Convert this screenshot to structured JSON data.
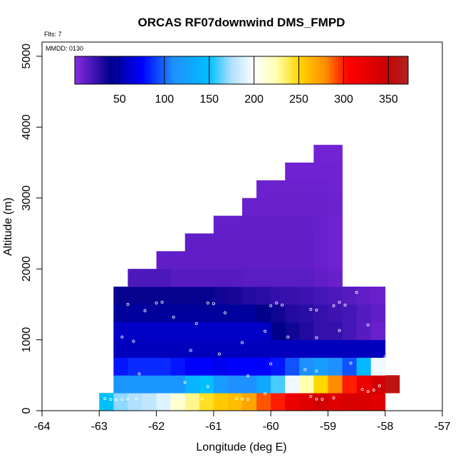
{
  "chart_data": {
    "type": "heatmap",
    "title": "ORCAS RF07downwind DMS_FMPD",
    "note_flights": "Flts: 7",
    "note_date": "MMDD: 0130",
    "xlabel": "Longitude (deg E)",
    "ylabel": "Altitude (m)",
    "xlim": [
      -64,
      -57
    ],
    "ylim": [
      0,
      5200
    ],
    "xticks": [
      -64,
      -63,
      -62,
      -61,
      -60,
      -59,
      -58,
      -57
    ],
    "xtick_labels": [
      "-64",
      "-63",
      "-62",
      "-61",
      "-60",
      "-59",
      "-58",
      "-57"
    ],
    "yticks": [
      0,
      1000,
      2000,
      3000,
      4000,
      5000
    ],
    "ytick_labels": [
      "0",
      "1000",
      "2000",
      "3000",
      "4000",
      "5000"
    ],
    "colorbar": {
      "min": 0,
      "max": 372,
      "ticks": [
        50,
        100,
        150,
        200,
        250,
        300,
        350
      ],
      "tick_labels": [
        "50",
        "100",
        "150",
        "200",
        "250",
        "300",
        "350"
      ],
      "colors": [
        [
          0,
          "#8a2be2"
        ],
        [
          40,
          "#00008b"
        ],
        [
          75,
          "#0000ff"
        ],
        [
          110,
          "#1e90ff"
        ],
        [
          150,
          "#00bfff"
        ],
        [
          175,
          "#b0e0ff"
        ],
        [
          200,
          "#ffffff"
        ],
        [
          225,
          "#ffffb0"
        ],
        [
          250,
          "#ffd700"
        ],
        [
          280,
          "#ff8c00"
        ],
        [
          305,
          "#ff0000"
        ],
        [
          345,
          "#cc0000"
        ],
        [
          372,
          "#b22222"
        ]
      ]
    },
    "cell_width_deg": 0.25,
    "cell_height_m": 250,
    "rows": [
      {
        "alt_bottom": 0,
        "lon_start": -63.0,
        "values": [
          150,
          170,
          175,
          180,
          190,
          215,
          230,
          245,
          255,
          260,
          270,
          290,
          300,
          320,
          330,
          340,
          330,
          335,
          335,
          330
        ]
      },
      {
        "alt_bottom": 250,
        "lon_start": -62.75,
        "values": [
          115,
          115,
          115,
          115,
          115,
          140,
          150,
          120,
          110,
          110,
          130,
          160,
          195,
          225,
          250,
          280,
          300,
          320,
          340,
          360
        ]
      },
      {
        "alt_bottom": 500,
        "lon_start": -62.75,
        "values": [
          80,
          85,
          85,
          85,
          80,
          75,
          75,
          70,
          75,
          75,
          75,
          80,
          95,
          110,
          120,
          110,
          95,
          145,
          195
        ]
      },
      {
        "alt_bottom": 750,
        "lon_start": -62.75,
        "values": [
          55,
          55,
          55,
          55,
          55,
          55,
          55,
          55,
          55,
          55,
          55,
          55,
          55,
          55,
          55,
          55,
          55,
          55,
          55
        ]
      },
      {
        "alt_bottom": 1000,
        "lon_start": -62.75,
        "values": [
          58,
          58,
          58,
          58,
          58,
          58,
          58,
          58,
          58,
          58,
          58,
          40,
          35,
          30,
          25,
          25,
          20,
          15,
          10
        ]
      },
      {
        "alt_bottom": 1250,
        "lon_start": -62.75,
        "values": [
          45,
          45,
          45,
          45,
          45,
          45,
          45,
          45,
          45,
          45,
          40,
          35,
          30,
          28,
          25,
          22,
          20,
          16,
          12
        ]
      },
      {
        "alt_bottom": 1500,
        "lon_start": -62.75,
        "values": [
          38,
          38,
          38,
          38,
          38,
          38,
          38,
          35,
          33,
          30,
          28,
          25,
          24,
          22,
          20,
          18,
          15,
          12,
          10
        ]
      },
      {
        "alt_bottom": 1750,
        "lon_start": -62.5,
        "values": [
          18,
          18,
          18,
          15,
          15,
          15,
          15,
          15,
          14,
          14,
          14,
          14,
          14,
          12,
          10
        ]
      },
      {
        "alt_bottom": 2000,
        "lon_start": -62.0,
        "values": [
          12,
          12,
          12,
          12,
          12,
          12,
          12,
          12,
          12,
          12,
          12,
          10,
          8
        ]
      },
      {
        "alt_bottom": 2250,
        "lon_start": -61.5,
        "values": [
          12,
          12,
          12,
          12,
          12,
          12,
          12,
          12,
          12,
          10,
          8
        ]
      },
      {
        "alt_bottom": 2500,
        "lon_start": -61.0,
        "values": [
          11,
          11,
          11,
          11,
          11,
          11,
          11,
          10,
          8
        ]
      },
      {
        "alt_bottom": 2750,
        "lon_start": -60.5,
        "values": [
          10,
          10,
          10,
          10,
          10,
          10,
          9
        ]
      },
      {
        "alt_bottom": 3000,
        "lon_start": -60.25,
        "values": [
          9,
          9,
          9,
          9,
          9,
          8
        ]
      },
      {
        "alt_bottom": 3250,
        "lon_start": -59.75,
        "values": [
          8,
          8,
          8,
          8
        ]
      },
      {
        "alt_bottom": 3500,
        "lon_start": -59.25,
        "values": [
          7,
          7
        ]
      }
    ],
    "sample_points": [
      [
        -62.9,
        170
      ],
      [
        -62.8,
        160
      ],
      [
        -62.7,
        155
      ],
      [
        -62.6,
        160
      ],
      [
        -62.5,
        165
      ],
      [
        -62.35,
        170
      ],
      [
        -61.6,
        170
      ],
      [
        -61.5,
        165
      ],
      [
        -61.2,
        165
      ],
      [
        -60.6,
        170
      ],
      [
        -60.5,
        165
      ],
      [
        -60.4,
        160
      ],
      [
        -60.1,
        240
      ],
      [
        -59.3,
        200
      ],
      [
        -59.2,
        165
      ],
      [
        -59.1,
        160
      ],
      [
        -58.9,
        180
      ],
      [
        -58.4,
        300
      ],
      [
        -58.3,
        270
      ],
      [
        -58.2,
        290
      ],
      [
        -58.1,
        350
      ],
      [
        -62.8,
        580
      ],
      [
        -62.3,
        520
      ],
      [
        -61.5,
        400
      ],
      [
        -61.1,
        340
      ],
      [
        -60.4,
        490
      ],
      [
        -60.0,
        660
      ],
      [
        -59.4,
        580
      ],
      [
        -59.2,
        560
      ],
      [
        -58.6,
        670
      ],
      [
        -58.0,
        760
      ],
      [
        -62.4,
        980
      ],
      [
        -62.6,
        1040
      ],
      [
        -61.4,
        850
      ],
      [
        -60.9,
        800
      ],
      [
        -60.5,
        960
      ],
      [
        -60.1,
        1120
      ],
      [
        -59.7,
        1040
      ],
      [
        -59.2,
        1030
      ],
      [
        -58.8,
        1130
      ],
      [
        -58.3,
        1210
      ],
      [
        -62.5,
        1500
      ],
      [
        -62.2,
        1410
      ],
      [
        -62.0,
        1520
      ],
      [
        -61.9,
        1530
      ],
      [
        -61.7,
        1320
      ],
      [
        -61.3,
        1230
      ],
      [
        -61.1,
        1520
      ],
      [
        -61.0,
        1510
      ],
      [
        -60.8,
        1380
      ],
      [
        -60.0,
        1480
      ],
      [
        -59.9,
        1520
      ],
      [
        -59.8,
        1490
      ],
      [
        -59.3,
        1430
      ],
      [
        -59.2,
        1420
      ],
      [
        -58.9,
        1480
      ],
      [
        -58.8,
        1530
      ],
      [
        -58.7,
        1490
      ],
      [
        -58.5,
        1670
      ],
      [
        -62.6,
        1960
      ],
      [
        -58.3,
        2140
      ],
      [
        -58.3,
        2610
      ],
      [
        -58.4,
        3080
      ],
      [
        -58.4,
        3560
      ]
    ]
  }
}
